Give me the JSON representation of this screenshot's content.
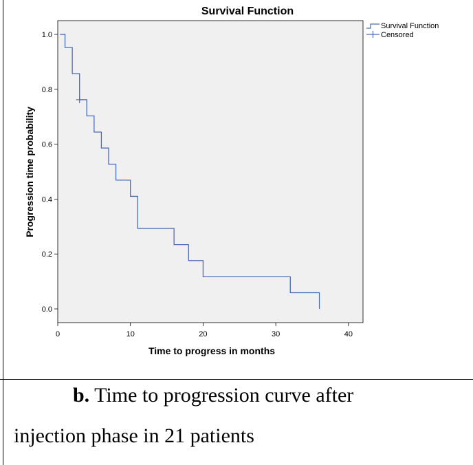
{
  "chart_data": {
    "type": "line",
    "title": "Survival Function",
    "xlabel": "Time to progress in months",
    "ylabel": "Progression time probability",
    "xlim": [
      0,
      42
    ],
    "ylim": [
      -0.05,
      1.05
    ],
    "xticks": [
      "0",
      "10",
      "20",
      "30",
      "40"
    ],
    "xtick_values": [
      0,
      10,
      20,
      30,
      40
    ],
    "yticks": [
      "0.0",
      "0.2",
      "0.4",
      "0.6",
      "0.8",
      "1.0"
    ],
    "ytick_values": [
      0.0,
      0.2,
      0.4,
      0.6,
      0.8,
      1.0
    ],
    "legend": [
      "Survival Function",
      "Censored"
    ],
    "legend_position": "outside-top-right",
    "series": [
      {
        "name": "Survival Function",
        "step_x": [
          0.3,
          1,
          2,
          3,
          4,
          5,
          6,
          7,
          8,
          10,
          11,
          16,
          18,
          20,
          32,
          36,
          36
        ],
        "step_y": [
          1.0,
          0.952,
          0.857,
          0.762,
          0.703,
          0.644,
          0.586,
          0.527,
          0.469,
          0.41,
          0.293,
          0.234,
          0.176,
          0.117,
          0.059,
          0.059,
          0.0
        ]
      }
    ],
    "censored": [
      {
        "x": 3,
        "y": 0.762
      }
    ],
    "color": "#4a6bb5"
  },
  "caption": {
    "bold_label": "b.",
    "line1": " Time to progression curve after",
    "line2": "injection phase in 21 patients"
  }
}
